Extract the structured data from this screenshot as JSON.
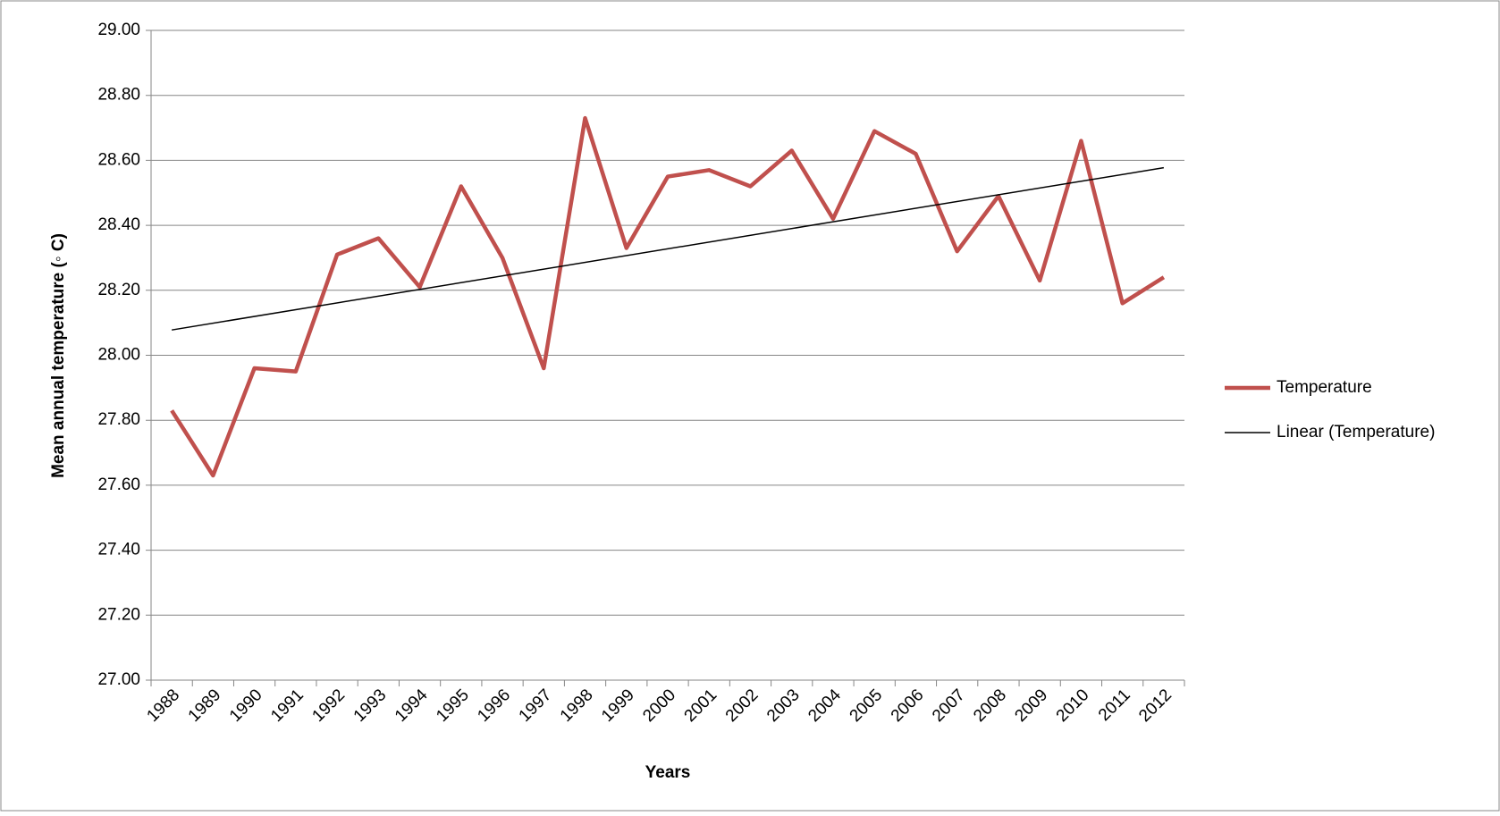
{
  "chart_data": {
    "type": "line",
    "x_label": "Years",
    "y_label": "Mean annual temperature (◦ C)",
    "categories": [
      "1988",
      "1989",
      "1990",
      "1991",
      "1992",
      "1993",
      "1994",
      "1995",
      "1996",
      "1997",
      "1998",
      "1999",
      "2000",
      "2001",
      "2002",
      "2003",
      "2004",
      "2005",
      "2006",
      "2007",
      "2008",
      "2009",
      "2010",
      "2011",
      "2012"
    ],
    "series": [
      {
        "name": "Temperature",
        "color": "#c0504d",
        "values": [
          27.83,
          27.63,
          27.96,
          27.95,
          28.31,
          28.36,
          28.21,
          28.52,
          28.3,
          27.96,
          28.73,
          28.33,
          28.55,
          28.57,
          28.52,
          28.63,
          28.42,
          28.69,
          28.62,
          28.32,
          28.49,
          28.23,
          28.66,
          28.16,
          28.24
        ]
      }
    ],
    "trendline": {
      "name": "Linear (Temperature)",
      "color": "#000000"
    },
    "ylim": [
      27,
      29
    ],
    "yticks": [
      {
        "value": 27,
        "label": "27.00"
      },
      {
        "value": 27.2,
        "label": "27.20"
      },
      {
        "value": 27.4,
        "label": "27.40"
      },
      {
        "value": 27.6,
        "label": "27.60"
      },
      {
        "value": 27.8,
        "label": "27.80"
      },
      {
        "value": 28,
        "label": "28.00"
      },
      {
        "value": 28.2,
        "label": "28.20"
      },
      {
        "value": 28.4,
        "label": "28.40"
      },
      {
        "value": 28.6,
        "label": "28.60"
      },
      {
        "value": 28.8,
        "label": "28.80"
      },
      {
        "value": 29,
        "label": "29.00"
      }
    ],
    "grid": true,
    "legend": "right"
  }
}
